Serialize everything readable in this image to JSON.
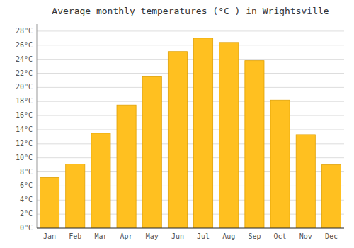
{
  "chart_data": {
    "type": "bar",
    "title": "Average monthly temperatures (°C ) in Wrightsville",
    "categories": [
      "Jan",
      "Feb",
      "Mar",
      "Apr",
      "May",
      "Jun",
      "Jul",
      "Aug",
      "Sep",
      "Oct",
      "Nov",
      "Dec"
    ],
    "values": [
      7.2,
      9.1,
      13.5,
      17.5,
      21.6,
      25.1,
      27.0,
      26.4,
      23.8,
      18.2,
      13.3,
      9.0
    ],
    "color": "#FFC020",
    "ylim": [
      0,
      29
    ],
    "yticks": [
      {
        "value": 0,
        "label": "0°C"
      },
      {
        "value": 2,
        "label": "2°C"
      },
      {
        "value": 4,
        "label": "4°C"
      },
      {
        "value": 6,
        "label": "6°C"
      },
      {
        "value": 8,
        "label": "8°C"
      },
      {
        "value": 10,
        "label": "10°C"
      },
      {
        "value": 12,
        "label": "12°C"
      },
      {
        "value": 14,
        "label": "14°C"
      },
      {
        "value": 16,
        "label": "16°C"
      },
      {
        "value": 18,
        "label": "18°C"
      },
      {
        "value": 20,
        "label": "20°C"
      },
      {
        "value": 22,
        "label": "22°C"
      },
      {
        "value": 24,
        "label": "24°C"
      },
      {
        "value": 26,
        "label": "26°C"
      },
      {
        "value": 28,
        "label": "28°C"
      }
    ],
    "grid": true
  }
}
